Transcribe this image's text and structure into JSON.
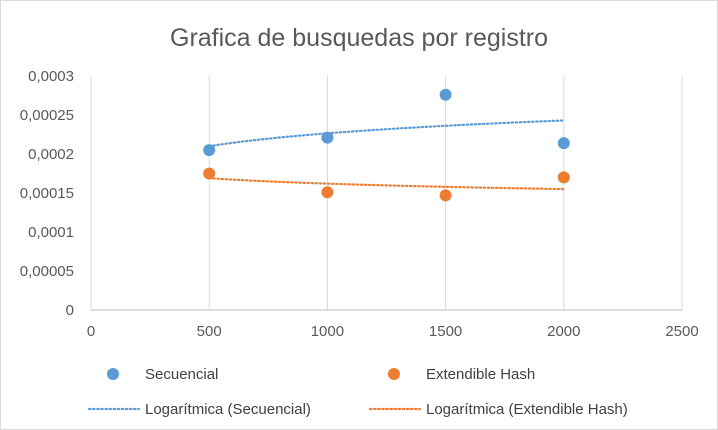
{
  "chart_data": {
    "type": "scatter",
    "title": "Grafica de busquedas por registro",
    "xlabel": "",
    "ylabel": "",
    "xlim": [
      0,
      2500
    ],
    "ylim": [
      0,
      0.0003
    ],
    "x_ticks": [
      "0",
      "500",
      "1000",
      "1500",
      "2000",
      "2500"
    ],
    "y_ticks": [
      "0",
      "0,00005",
      "0,0001",
      "0,00015",
      "0,0002",
      "0,00025",
      "0,0003"
    ],
    "grid": "vertical",
    "legend_position": "bottom",
    "series": [
      {
        "name": "Secuencial",
        "color": "#5b9bd5",
        "marker": "circle",
        "x": [
          500,
          1000,
          1500,
          2000
        ],
        "y": [
          0.000205,
          0.000221,
          0.000276,
          0.000214
        ]
      },
      {
        "name": "Extendible Hash",
        "color": "#ed7d31",
        "marker": "circle",
        "x": [
          500,
          1000,
          1500,
          2000
        ],
        "y": [
          0.000175,
          0.000151,
          0.000147,
          0.00017
        ]
      }
    ],
    "trendlines": [
      {
        "name": "Logarítmica (Secuencial)",
        "color": "#5b9bd5",
        "style": "dotted",
        "type": "logarithmic",
        "x_range": [
          500,
          2000
        ],
        "y_start": 0.00021,
        "y_end": 0.000243
      },
      {
        "name": "Logarítmica (Extendible Hash)",
        "color": "#ed7d31",
        "style": "dotted",
        "type": "logarithmic",
        "x_range": [
          500,
          2000
        ],
        "y_start": 0.000169,
        "y_end": 0.000155
      }
    ]
  }
}
